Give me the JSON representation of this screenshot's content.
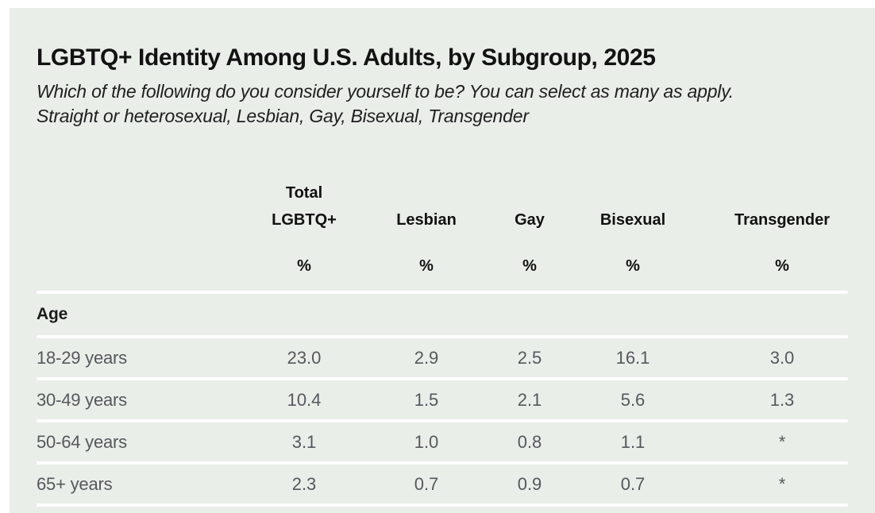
{
  "theme": {
    "page_background": "#ffffff",
    "card_background": "#e9eee9",
    "separator_color": "#fdfdfd",
    "heading_text_color": "#111111",
    "body_text_color": "#56585c"
  },
  "header": {
    "title": "LGBTQ+ Identity Among U.S. Adults, by Subgroup, 2025",
    "subtitle": "Which of the following do you consider yourself to be? You can select as many as apply. Straight or heterosexual, Lesbian, Gay, Bisexual, Transgender"
  },
  "table": {
    "columns": [
      {
        "label": "Total LGBTQ+",
        "unit": "%"
      },
      {
        "label": "Lesbian",
        "unit": "%"
      },
      {
        "label": "Gay",
        "unit": "%"
      },
      {
        "label": "Bisexual",
        "unit": "%"
      },
      {
        "label": "Transgender",
        "unit": "%"
      }
    ],
    "section_label": "Age",
    "rows": [
      {
        "label": "18-29 years",
        "values": [
          "23.0",
          "2.9",
          "2.5",
          "16.1",
          "3.0"
        ]
      },
      {
        "label": "30-49 years",
        "values": [
          "10.4",
          "1.5",
          "2.1",
          "5.6",
          "1.3"
        ]
      },
      {
        "label": "50-64 years",
        "values": [
          "3.1",
          "1.0",
          "0.8",
          "1.1",
          "*"
        ]
      },
      {
        "label": "65+ years",
        "values": [
          "2.3",
          "0.7",
          "0.9",
          "0.7",
          "*"
        ]
      }
    ]
  },
  "chart_data": {
    "type": "table",
    "title": "LGBTQ+ Identity Among U.S. Adults, by Subgroup, 2025",
    "subtitle": "Which of the following do you consider yourself to be? You can select as many as apply. Straight or heterosexual, Lesbian, Gay, Bisexual, Transgender",
    "columns": [
      "Total LGBTQ+",
      "Lesbian",
      "Gay",
      "Bisexual",
      "Transgender"
    ],
    "unit": "%",
    "row_group": "Age",
    "rows": [
      {
        "label": "18-29 years",
        "values": [
          "23.0",
          "2.9",
          "2.5",
          "16.1",
          "3.0"
        ]
      },
      {
        "label": "30-49 years",
        "values": [
          "10.4",
          "1.5",
          "2.1",
          "5.6",
          "1.3"
        ]
      },
      {
        "label": "50-64 years",
        "values": [
          "3.1",
          "1.0",
          "0.8",
          "1.1",
          "*"
        ]
      },
      {
        "label": "65+ years",
        "values": [
          "2.3",
          "0.7",
          "0.9",
          "0.7",
          "*"
        ]
      }
    ]
  }
}
